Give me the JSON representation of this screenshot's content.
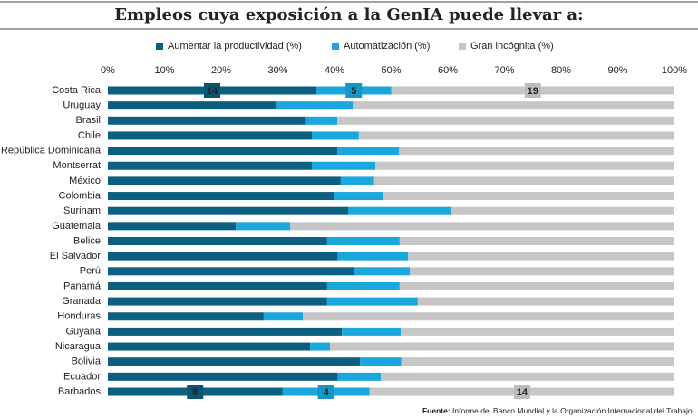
{
  "chart_data": {
    "type": "stacked-bar-horizontal",
    "title": "Empleos cuya exposición a la GenIA puede llevar a:",
    "source_label": "Fuente:",
    "source": "Informe del Banco Mundial y la Organización Internacional del Trabajo.",
    "categories": [
      "Costa Rica",
      "Uruguay",
      "Brasil",
      "Chile",
      "República Dominicana",
      "Montserrat",
      "México",
      "Colombia",
      "Surinam",
      "Guatemala",
      "Belice",
      "El Salvador",
      "Perú",
      "Panamá",
      "Granada",
      "Honduras",
      "Guyana",
      "Nicaragua",
      "Bolivia",
      "Ecuador",
      "Barbados"
    ],
    "series": [
      {
        "name": "Aumentar la productividad (%)",
        "color": "#0d5f7f",
        "values": [
          36.8,
          29.6,
          35.0,
          36.0,
          40.5,
          36.0,
          41.1,
          40.0,
          42.4,
          22.6,
          38.7,
          40.6,
          43.4,
          38.7,
          38.7,
          27.5,
          41.3,
          35.7,
          44.5,
          40.6,
          30.8
        ],
        "counts": [
          14,
          null,
          null,
          null,
          null,
          null,
          null,
          null,
          null,
          null,
          null,
          null,
          null,
          null,
          null,
          null,
          null,
          null,
          null,
          null,
          8
        ]
      },
      {
        "name": "Automatización (%)",
        "color": "#1aa7dc",
        "values": [
          13.2,
          13.6,
          5.5,
          8.3,
          10.9,
          11.2,
          5.9,
          8.5,
          18.1,
          9.6,
          12.8,
          12.4,
          9.9,
          12.8,
          16.0,
          6.9,
          10.4,
          3.5,
          7.3,
          7.6,
          15.4
        ],
        "counts": [
          5,
          null,
          null,
          null,
          null,
          null,
          null,
          null,
          null,
          null,
          null,
          null,
          null,
          null,
          null,
          null,
          null,
          null,
          null,
          null,
          4
        ]
      },
      {
        "name": "Gran incógnita (%)",
        "color": "#c6c6c6",
        "values": [
          50.0,
          56.8,
          59.5,
          55.7,
          48.6,
          52.8,
          53.0,
          51.5,
          39.5,
          67.8,
          48.5,
          47.0,
          46.7,
          48.5,
          45.3,
          65.6,
          48.3,
          60.8,
          48.2,
          51.8,
          53.8
        ],
        "counts": [
          19,
          null,
          null,
          null,
          null,
          null,
          null,
          null,
          null,
          null,
          null,
          null,
          null,
          null,
          null,
          null,
          null,
          null,
          null,
          null,
          14
        ]
      }
    ],
    "xlim": [
      0,
      100
    ],
    "xticks": [
      {
        "value": 0,
        "label": "0%"
      },
      {
        "value": 10,
        "label": "10%"
      },
      {
        "value": 20,
        "label": "20%"
      },
      {
        "value": 30,
        "label": "30%"
      },
      {
        "value": 40,
        "label": "40%"
      },
      {
        "value": 50,
        "label": "50%"
      },
      {
        "value": 60,
        "label": "60%"
      },
      {
        "value": 70,
        "label": "70%"
      },
      {
        "value": 80,
        "label": "80%"
      },
      {
        "value": 90,
        "label": "90%"
      },
      {
        "value": 100,
        "label": "100%"
      }
    ],
    "legend": "top"
  }
}
